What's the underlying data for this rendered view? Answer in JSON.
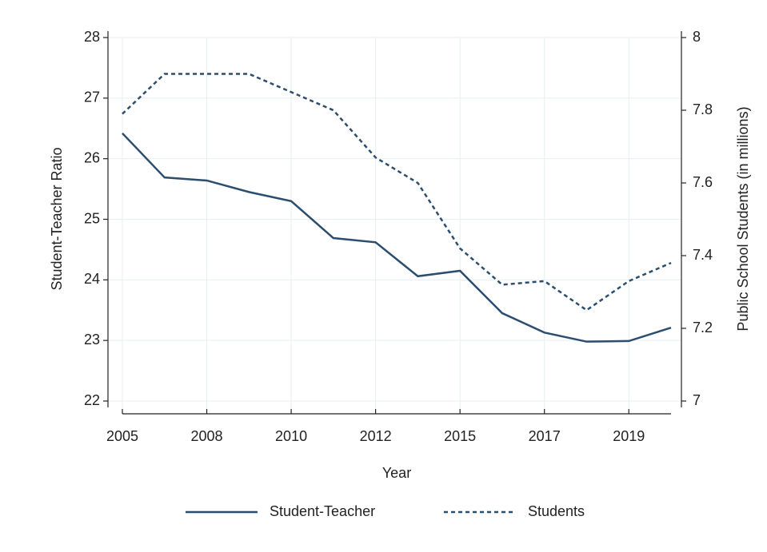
{
  "chart_data": {
    "type": "line",
    "xlabel": "Year",
    "ylabel": "Student-Teacher Ratio",
    "y2label": "Public School Students (in millions)",
    "categories": [
      "2005",
      null,
      "2008",
      null,
      "2010",
      null,
      "2012",
      null,
      "2015",
      null,
      "2017",
      null,
      "2019",
      null
    ],
    "series": [
      {
        "name": "Student-Teacher",
        "color": "#2b4d6e",
        "dash": "solid",
        "values": [
          26.42,
          25.69,
          25.64,
          25.45,
          25.3,
          24.69,
          24.62,
          24.06,
          24.15,
          23.45,
          23.13,
          22.98,
          22.99,
          23.21
        ]
      },
      {
        "name": "Students",
        "color": "#2b4d6e",
        "dash": "dotted",
        "axis": "y2",
        "values": [
          7.79,
          7.9,
          7.9,
          7.9,
          7.85,
          7.8,
          7.67,
          7.6,
          7.42,
          7.32,
          7.33,
          7.25,
          7.33,
          7.38
        ]
      }
    ],
    "ylim": [
      22,
      28
    ],
    "yticks": [
      22,
      23,
      24,
      25,
      26,
      27,
      28
    ],
    "y2lim": [
      7,
      8
    ],
    "y2ticks": [
      7,
      7.2,
      7.4,
      7.6,
      7.8,
      8
    ],
    "grid": true,
    "legend": "bottom"
  }
}
